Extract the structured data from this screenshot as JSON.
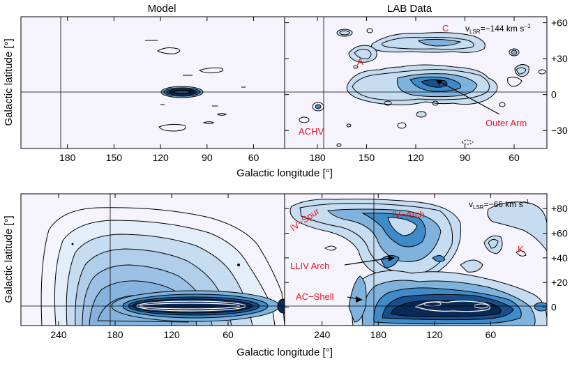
{
  "chart_data": [
    {
      "type": "heatmap",
      "panel": "top-left",
      "title": "Model",
      "xlabel": "Galactic longitude [°]",
      "ylabel": "Galactic latitude [°]",
      "xticks": [
        "180",
        "150",
        "120",
        "90",
        "60"
      ],
      "yticks": [],
      "xlim": [
        210,
        40
      ],
      "ylim": [
        -45,
        65
      ],
      "reference_lines": {
        "l": 180,
        "b": 0
      },
      "grid": false
    },
    {
      "type": "heatmap",
      "panel": "top-right",
      "title": "LAB Data",
      "velocity_prefix": "v",
      "velocity_sub": "LSR",
      "velocity_value": "=−144 km s",
      "velocity_exp": "−1",
      "xticks": [
        "180",
        "150",
        "120",
        "90",
        "60"
      ],
      "yticks": [
        "+60",
        "+30",
        "0",
        "−30"
      ],
      "xlim": [
        200,
        40
      ],
      "ylim": [
        -45,
        65
      ],
      "annotations": [
        "C",
        "A",
        "Outer Arm",
        "ACHV"
      ],
      "reference_lines": {
        "l": 180,
        "b": 0
      }
    },
    {
      "type": "heatmap",
      "panel": "bottom-left",
      "xlabel": "Galactic longitude [°]",
      "ylabel": "Galactic latitude [°]",
      "xticks": [
        "240",
        "180",
        "120",
        "60"
      ],
      "yticks": [],
      "xlim": [
        280,
        0
      ],
      "ylim": [
        -15,
        92
      ],
      "reference_lines": {
        "l": 180,
        "b": 0
      }
    },
    {
      "type": "heatmap",
      "panel": "bottom-right",
      "velocity_prefix": "v",
      "velocity_sub": "LSR",
      "velocity_value": "=−66 km s",
      "velocity_exp": "−1",
      "xticks": [
        "240",
        "180",
        "120",
        "60"
      ],
      "yticks": [
        "+80",
        "+60",
        "+40",
        "+20",
        "0"
      ],
      "xlim": [
        280,
        0
      ],
      "ylim": [
        -15,
        92
      ],
      "annotations": [
        "IV−Spur",
        "IV−Arch",
        "K",
        "LLIV Arch",
        "AC−Shell"
      ],
      "reference_lines": {
        "l": 180,
        "b": 0
      }
    }
  ],
  "colors": {
    "background": "#f5f3fc",
    "light_blue": "#c6dcf0",
    "mid_blue": "#7fb3dd",
    "blue": "#3f8ac8",
    "dark_blue": "#1b4f8c",
    "navy": "#0a2a55",
    "annotation_red": "#e8141e"
  }
}
